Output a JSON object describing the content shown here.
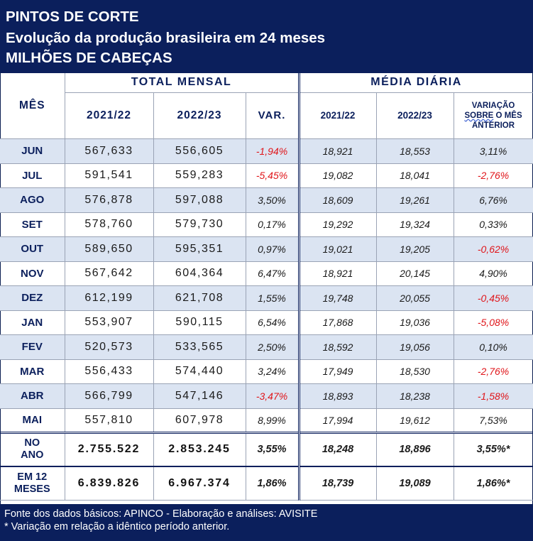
{
  "title": {
    "line1": "PINTOS DE CORTE",
    "line2": "Evolução da produção brasileira em 24 meses",
    "line3": "MILHÕES DE CABEÇAS"
  },
  "headers": {
    "month": "MÊS",
    "total_group": "TOTAL MENSAL",
    "daily_group": "MÉDIA DIÁRIA",
    "year1": "2021/22",
    "year2": "2022/23",
    "var": "VAR.",
    "daily_year1": "2021/22",
    "daily_year2": "2022/23",
    "variation_line1": "VARIAÇÃO",
    "variation_line2a": "SOBRE",
    "variation_line2b": " O MÊS",
    "variation_line3": "ANTERIOR"
  },
  "rows": [
    {
      "month": "JUN",
      "t1": "567,633",
      "t2": "556,605",
      "var": "-1,94%",
      "var_neg": true,
      "d1": "18,921",
      "d2": "18,553",
      "dv": "3,11%",
      "dv_neg": false
    },
    {
      "month": "JUL",
      "t1": "591,541",
      "t2": "559,283",
      "var": "-5,45%",
      "var_neg": true,
      "d1": "19,082",
      "d2": "18,041",
      "dv": "-2,76%",
      "dv_neg": true
    },
    {
      "month": "AGO",
      "t1": "576,878",
      "t2": "597,088",
      "var": "3,50%",
      "var_neg": false,
      "d1": "18,609",
      "d2": "19,261",
      "dv": "6,76%",
      "dv_neg": false
    },
    {
      "month": "SET",
      "t1": "578,760",
      "t2": "579,730",
      "var": "0,17%",
      "var_neg": false,
      "d1": "19,292",
      "d2": "19,324",
      "dv": "0,33%",
      "dv_neg": false
    },
    {
      "month": "OUT",
      "t1": "589,650",
      "t2": "595,351",
      "var": "0,97%",
      "var_neg": false,
      "d1": "19,021",
      "d2": "19,205",
      "dv": "-0,62%",
      "dv_neg": true
    },
    {
      "month": "NOV",
      "t1": "567,642",
      "t2": "604,364",
      "var": "6,47%",
      "var_neg": false,
      "d1": "18,921",
      "d2": "20,145",
      "dv": "4,90%",
      "dv_neg": false
    },
    {
      "month": "DEZ",
      "t1": "612,199",
      "t2": "621,708",
      "var": "1,55%",
      "var_neg": false,
      "d1": "19,748",
      "d2": "20,055",
      "dv": "-0,45%",
      "dv_neg": true
    },
    {
      "month": "JAN",
      "t1": "553,907",
      "t2": "590,115",
      "var": "6,54%",
      "var_neg": false,
      "d1": "17,868",
      "d2": "19,036",
      "dv": "-5,08%",
      "dv_neg": true
    },
    {
      "month": "FEV",
      "t1": "520,573",
      "t2": "533,565",
      "var": "2,50%",
      "var_neg": false,
      "d1": "18,592",
      "d2": "19,056",
      "dv": "0,10%",
      "dv_neg": false
    },
    {
      "month": "MAR",
      "t1": "556,433",
      "t2": "574,440",
      "var": "3,24%",
      "var_neg": false,
      "d1": "17,949",
      "d2": "18,530",
      "dv": "-2,76%",
      "dv_neg": true
    },
    {
      "month": "ABR",
      "t1": "566,799",
      "t2": "547,146",
      "var": "-3,47%",
      "var_neg": true,
      "d1": "18,893",
      "d2": "18,238",
      "dv": "-1,58%",
      "dv_neg": true
    },
    {
      "month": "MAI",
      "t1": "557,810",
      "t2": "607,978",
      "var": "8,99%",
      "var_neg": false,
      "d1": "17,994",
      "d2": "19,612",
      "dv": "7,53%",
      "dv_neg": false
    }
  ],
  "summary": [
    {
      "label_line1": "NO",
      "label_line2": "ANO",
      "t1": "2.755.522",
      "t2": "2.853.245",
      "var": "3,55%",
      "d1": "18,248",
      "d2": "18,896",
      "dv": "3,55%*"
    },
    {
      "label_line1": "EM 12",
      "label_line2": "MESES",
      "t1": "6.839.826",
      "t2": "6.967.374",
      "var": "1,86%",
      "d1": "18,739",
      "d2": "19,089",
      "dv": "1,86%*"
    }
  ],
  "footer": {
    "source": "Fonte dos dados básicos: APINCO - Elaboração e análises: AVISITE",
    "note": "* Variação em relação a idêntico período anterior."
  },
  "colors": {
    "navy": "#0b1f5c",
    "row_shade": "#dbe4f2",
    "negative": "#e0161b"
  }
}
